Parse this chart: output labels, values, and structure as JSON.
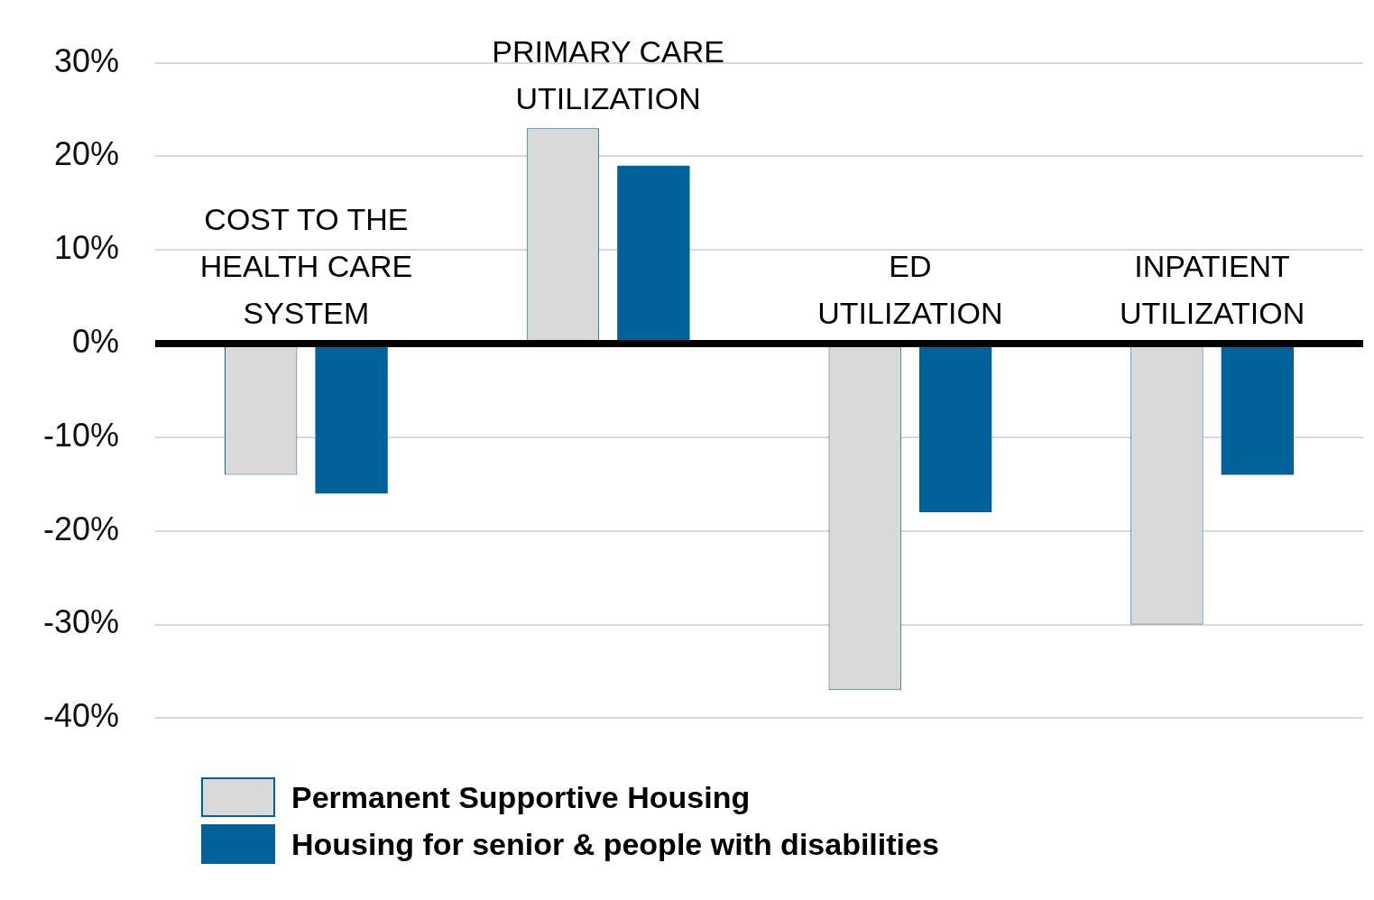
{
  "chart_data": {
    "type": "bar",
    "categories": [
      "COST TO THE\nHEALTH CARE\nSYSTEM",
      "PRIMARY CARE\nUTILIZATION",
      "ED\nUTILIZATION",
      "INPATIENT\nUTILIZATION"
    ],
    "series": [
      {
        "name": "Permanent Supportive Housing",
        "color": "#d9d9d9",
        "values": [
          -14,
          23,
          -37,
          -30
        ]
      },
      {
        "name": "Housing for senior & people with disabilities",
        "color": "#006298",
        "values": [
          -16,
          19,
          -18,
          -14
        ]
      }
    ],
    "ylim": [
      -40,
      30
    ],
    "yticks": [
      {
        "value": -40,
        "label": "-40%"
      },
      {
        "value": -30,
        "label": "-30%"
      },
      {
        "value": -20,
        "label": "-20%"
      },
      {
        "value": -10,
        "label": "-10%"
      },
      {
        "value": 0,
        "label": "0%"
      },
      {
        "value": 10,
        "label": "10%"
      },
      {
        "value": 20,
        "label": "20%"
      },
      {
        "value": 30,
        "label": "30%"
      }
    ],
    "grid": "y",
    "legend": "bottom left"
  }
}
